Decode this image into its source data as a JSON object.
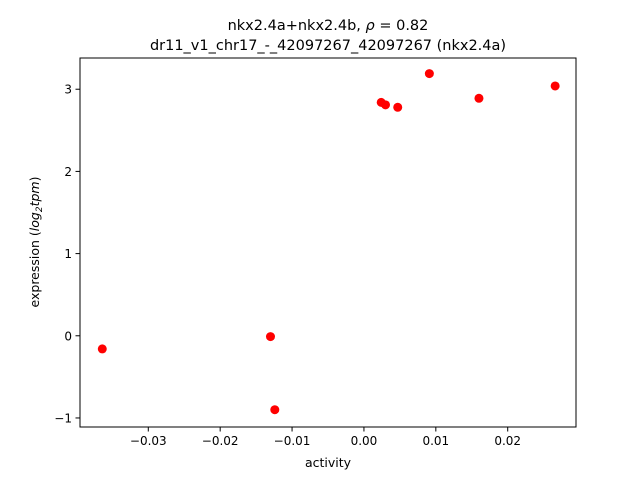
{
  "chart_data": {
    "type": "scatter",
    "title": "nkx2.4a+nkx2.4b, ",
    "title_rho": "ρ",
    "title_rho_value": " = 0.82",
    "subtitle": "dr11_v1_chr17_-_42097267_42097267 (nkx2.4a)",
    "xlabel": "activity",
    "ylabel": "expression (",
    "ylabel_log": "log",
    "ylabel_sub": "2",
    "ylabel_tpm": "tpm",
    "ylabel_close": ")",
    "xlim": [
      -0.0395,
      0.0295
    ],
    "ylim": [
      -1.11,
      3.38
    ],
    "x_ticks": [
      -0.03,
      -0.02,
      -0.01,
      0.0,
      0.01,
      0.02
    ],
    "x_tick_labels": [
      "−0.03",
      "−0.02",
      "−0.01",
      "0.00",
      "0.01",
      "0.02"
    ],
    "y_ticks": [
      -1,
      0,
      1,
      2,
      3
    ],
    "y_tick_labels": [
      "−1",
      "0",
      "1",
      "2",
      "3"
    ],
    "grid": false,
    "marker_color": "#ff0000",
    "points": [
      {
        "x": -0.0364,
        "y": -0.16
      },
      {
        "x": -0.013,
        "y": -0.01
      },
      {
        "x": -0.0124,
        "y": -0.9
      },
      {
        "x": 0.0024,
        "y": 2.84
      },
      {
        "x": 0.003,
        "y": 2.81
      },
      {
        "x": 0.0047,
        "y": 2.78
      },
      {
        "x": 0.0091,
        "y": 3.19
      },
      {
        "x": 0.016,
        "y": 2.89
      },
      {
        "x": 0.0266,
        "y": 3.04
      }
    ]
  }
}
